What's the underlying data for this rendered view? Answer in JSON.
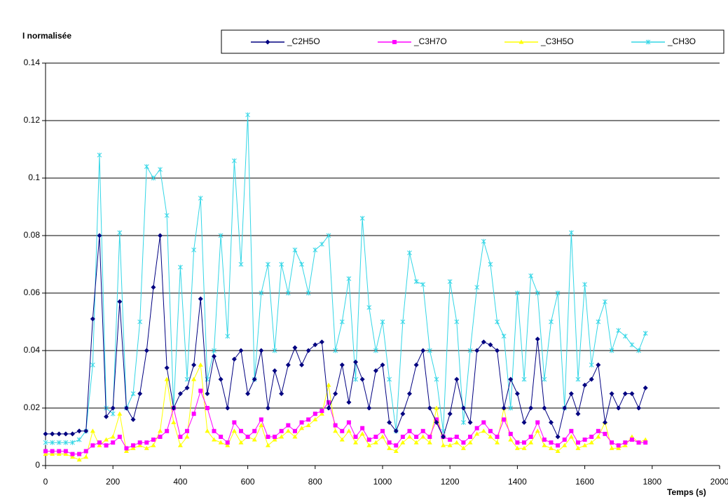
{
  "chart_data": {
    "type": "line",
    "title": "I normalisée",
    "x_label": "Temps (s)",
    "x": [
      0,
      20,
      40,
      60,
      80,
      100,
      120,
      140,
      160,
      180,
      200,
      220,
      240,
      260,
      280,
      300,
      320,
      340,
      360,
      380,
      400,
      420,
      440,
      460,
      480,
      500,
      520,
      540,
      560,
      580,
      600,
      620,
      640,
      660,
      680,
      700,
      720,
      740,
      760,
      780,
      800,
      820,
      840,
      860,
      880,
      900,
      920,
      940,
      960,
      980,
      1000,
      1020,
      1040,
      1060,
      1080,
      1100,
      1120,
      1140,
      1160,
      1180,
      1200,
      1220,
      1240,
      1260,
      1280,
      1300,
      1320,
      1340,
      1360,
      1380,
      1400,
      1420,
      1440,
      1460,
      1480,
      1500,
      1520,
      1540,
      1560,
      1580,
      1600,
      1620,
      1640,
      1660,
      1680,
      1700,
      1720,
      1740,
      1760,
      1780
    ],
    "series": [
      {
        "name": "_C2H5O",
        "color": "#000080",
        "marker": "diamond",
        "values": [
          0.011,
          0.011,
          0.011,
          0.011,
          0.011,
          0.012,
          0.012,
          0.051,
          0.08,
          0.017,
          0.02,
          0.057,
          0.02,
          0.016,
          0.025,
          0.04,
          0.062,
          0.08,
          0.034,
          0.02,
          0.025,
          0.027,
          0.035,
          0.058,
          0.025,
          0.038,
          0.03,
          0.02,
          0.037,
          0.04,
          0.025,
          0.03,
          0.04,
          0.02,
          0.033,
          0.025,
          0.035,
          0.041,
          0.035,
          0.04,
          0.042,
          0.043,
          0.02,
          0.025,
          0.035,
          0.022,
          0.036,
          0.03,
          0.02,
          0.033,
          0.035,
          0.015,
          0.012,
          0.018,
          0.025,
          0.035,
          0.04,
          0.02,
          0.015,
          0.01,
          0.018,
          0.03,
          0.02,
          0.015,
          0.04,
          0.043,
          0.042,
          0.04,
          0.02,
          0.03,
          0.025,
          0.015,
          0.02,
          0.044,
          0.02,
          0.015,
          0.01,
          0.02,
          0.025,
          0.018,
          0.028,
          0.03,
          0.035,
          0.015,
          0.025,
          0.02,
          0.025,
          0.025,
          0.02,
          0.027
        ]
      },
      {
        "name": "_C3H7O",
        "color": "#ff00ff",
        "marker": "square",
        "values": [
          0.005,
          0.005,
          0.005,
          0.005,
          0.004,
          0.004,
          0.005,
          0.007,
          0.008,
          0.007,
          0.008,
          0.01,
          0.006,
          0.007,
          0.008,
          0.008,
          0.009,
          0.01,
          0.012,
          0.02,
          0.01,
          0.012,
          0.018,
          0.026,
          0.02,
          0.012,
          0.01,
          0.008,
          0.015,
          0.012,
          0.01,
          0.012,
          0.016,
          0.01,
          0.01,
          0.012,
          0.014,
          0.012,
          0.015,
          0.016,
          0.018,
          0.019,
          0.022,
          0.014,
          0.012,
          0.015,
          0.01,
          0.013,
          0.009,
          0.01,
          0.012,
          0.008,
          0.007,
          0.01,
          0.012,
          0.01,
          0.012,
          0.01,
          0.016,
          0.01,
          0.009,
          0.01,
          0.008,
          0.01,
          0.013,
          0.015,
          0.012,
          0.01,
          0.016,
          0.011,
          0.008,
          0.008,
          0.01,
          0.015,
          0.009,
          0.008,
          0.007,
          0.009,
          0.012,
          0.008,
          0.009,
          0.01,
          0.012,
          0.011,
          0.008,
          0.007,
          0.008,
          0.009,
          0.008,
          0.008
        ]
      },
      {
        "name": "_C3H5O",
        "color": "#ffff00",
        "marker": "triangle",
        "values": [
          0.004,
          0.004,
          0.004,
          0.004,
          0.003,
          0.002,
          0.003,
          0.012,
          0.007,
          0.009,
          0.01,
          0.018,
          0.005,
          0.006,
          0.007,
          0.006,
          0.007,
          0.012,
          0.03,
          0.015,
          0.007,
          0.01,
          0.03,
          0.035,
          0.012,
          0.009,
          0.008,
          0.007,
          0.012,
          0.008,
          0.01,
          0.009,
          0.014,
          0.007,
          0.009,
          0.01,
          0.012,
          0.01,
          0.013,
          0.014,
          0.016,
          0.018,
          0.028,
          0.012,
          0.009,
          0.012,
          0.008,
          0.011,
          0.007,
          0.008,
          0.01,
          0.006,
          0.005,
          0.008,
          0.01,
          0.008,
          0.01,
          0.008,
          0.02,
          0.007,
          0.007,
          0.008,
          0.006,
          0.008,
          0.011,
          0.012,
          0.01,
          0.008,
          0.02,
          0.009,
          0.006,
          0.006,
          0.008,
          0.012,
          0.007,
          0.006,
          0.005,
          0.007,
          0.01,
          0.006,
          0.007,
          0.008,
          0.01,
          0.015,
          0.006,
          0.006,
          0.007,
          0.01,
          0.008,
          0.009
        ]
      },
      {
        "name": "_CH3O",
        "color": "#33d6e6",
        "marker": "star",
        "values": [
          0.008,
          0.008,
          0.008,
          0.008,
          0.008,
          0.009,
          0.012,
          0.035,
          0.108,
          0.02,
          0.018,
          0.081,
          0.02,
          0.025,
          0.05,
          0.104,
          0.1,
          0.103,
          0.087,
          0.02,
          0.069,
          0.03,
          0.075,
          0.093,
          0.03,
          0.04,
          0.08,
          0.045,
          0.106,
          0.07,
          0.122,
          0.03,
          0.06,
          0.07,
          0.04,
          0.07,
          0.06,
          0.075,
          0.07,
          0.06,
          0.075,
          0.077,
          0.08,
          0.04,
          0.05,
          0.065,
          0.03,
          0.086,
          0.055,
          0.04,
          0.05,
          0.03,
          0.012,
          0.05,
          0.074,
          0.064,
          0.063,
          0.04,
          0.03,
          0.012,
          0.064,
          0.05,
          0.015,
          0.04,
          0.062,
          0.078,
          0.07,
          0.05,
          0.045,
          0.02,
          0.06,
          0.03,
          0.066,
          0.06,
          0.03,
          0.05,
          0.06,
          0.02,
          0.081,
          0.03,
          0.063,
          0.035,
          0.05,
          0.057,
          0.04,
          0.047,
          0.045,
          0.042,
          0.04,
          0.046
        ]
      }
    ],
    "xlim": [
      0,
      2000
    ],
    "xticks": [
      0,
      200,
      400,
      600,
      800,
      1000,
      1200,
      1400,
      1600,
      1800,
      2000
    ],
    "ylim": [
      0,
      0.14
    ],
    "yticks": [
      0,
      0.02,
      0.04,
      0.06,
      0.08,
      0.1,
      0.12,
      0.14
    ],
    "grid": true,
    "legend": "top"
  }
}
